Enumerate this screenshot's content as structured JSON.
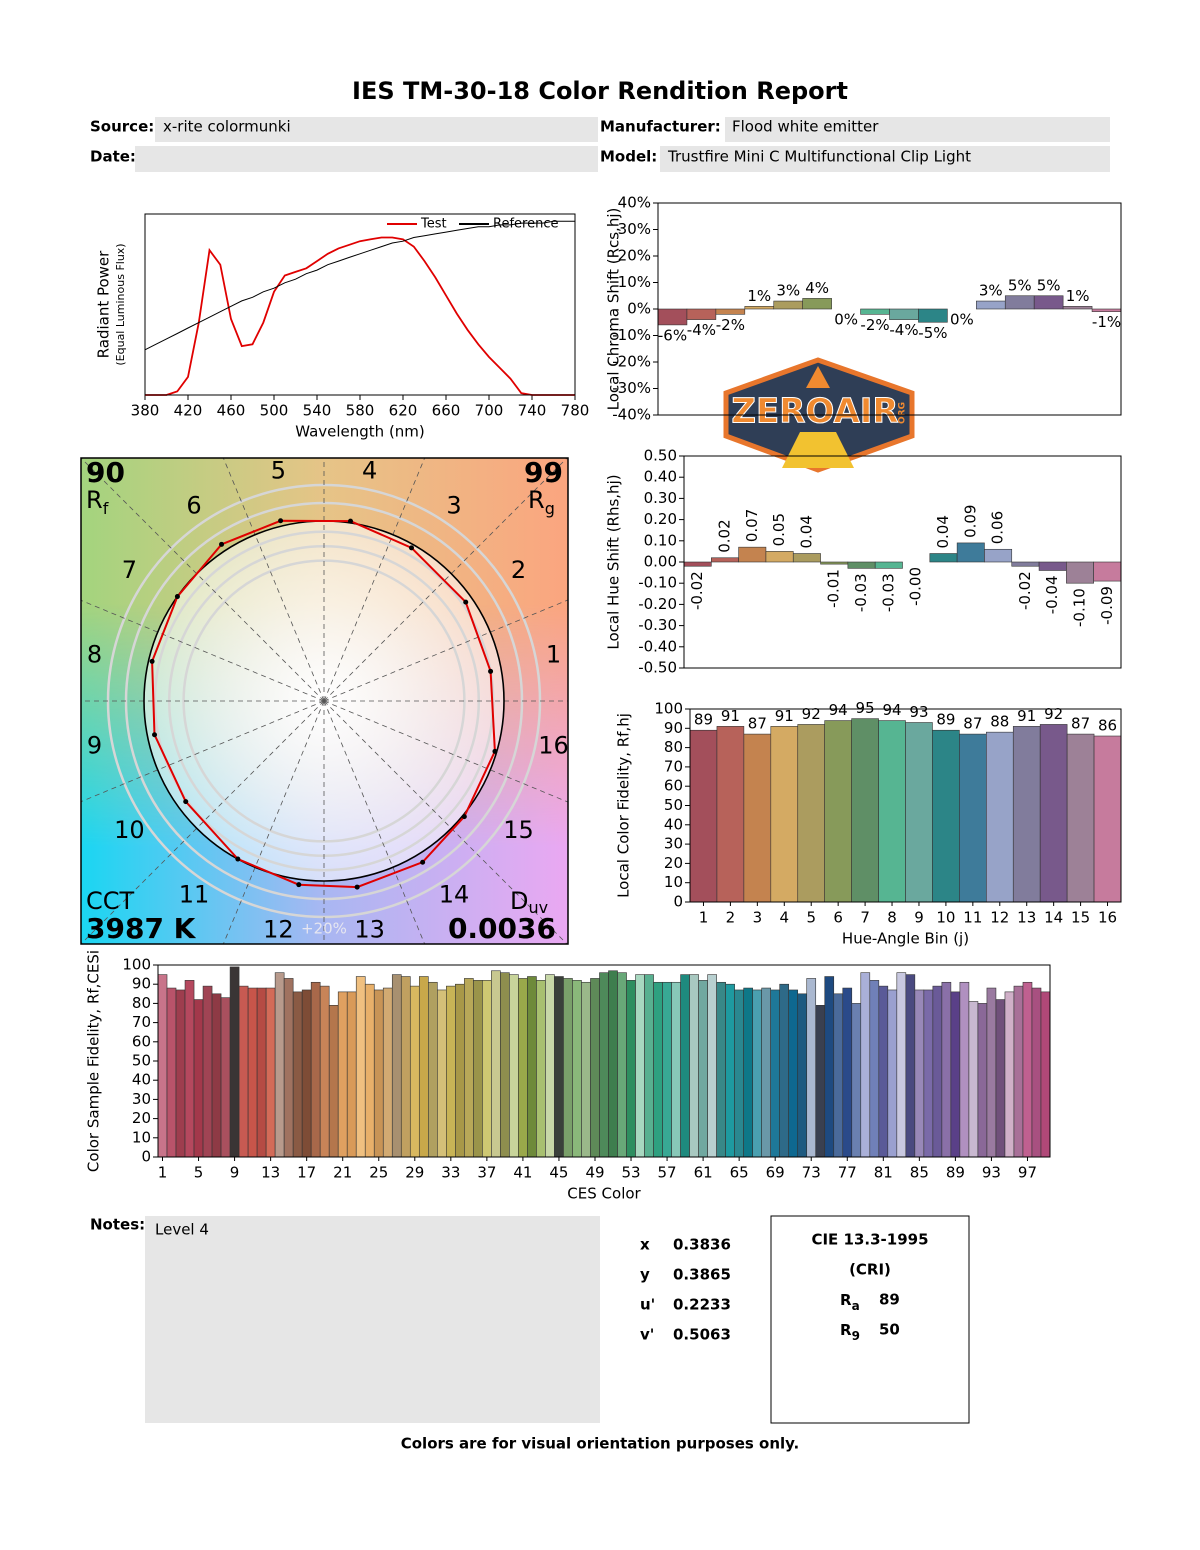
{
  "header": {
    "title": "IES TM-30-18 Color Rendition Report",
    "source_label": "Source:",
    "source": "x-rite colormunki",
    "manufacturer_label": "Manufacturer:",
    "manufacturer": "Flood white emitter",
    "date_label": "Date:",
    "model_label": "Model:",
    "model": "Trustfire Mini C Multifunctional Clip Light"
  },
  "logo": {
    "text": "ZEROAIR",
    "sub": "ORG"
  },
  "vector_graphic": {
    "rf": 90,
    "rf_symbol": "R",
    "rf_sub": "f",
    "rg": 99,
    "rg_symbol": "R",
    "rg_sub": "g",
    "cct_label": "CCT",
    "cct": "3987 K",
    "duv_symbol": "D",
    "duv_sub": "uv",
    "duv": 0.0036,
    "scale_label": "+20%",
    "hue_bins": [
      "1",
      "2",
      "3",
      "4",
      "5",
      "6",
      "7",
      "8",
      "9",
      "10",
      "11",
      "12",
      "13",
      "14",
      "15",
      "16"
    ]
  },
  "chart_data": [
    {
      "type": "line",
      "xlabel": "Wavelength (nm)",
      "ylabel": "Radiant Power",
      "ylabel_sub": "(Equal Luminous Flux)",
      "x": [
        380,
        390,
        400,
        410,
        420,
        430,
        440,
        450,
        460,
        470,
        480,
        490,
        500,
        510,
        520,
        530,
        540,
        550,
        560,
        570,
        580,
        590,
        600,
        610,
        620,
        630,
        640,
        650,
        660,
        670,
        680,
        690,
        700,
        710,
        720,
        730,
        740,
        750,
        760,
        770,
        780
      ],
      "series": [
        {
          "name": "Test",
          "color": "#e00000",
          "values": [
            0,
            0,
            0,
            0.02,
            0.1,
            0.4,
            0.8,
            0.72,
            0.42,
            0.27,
            0.28,
            0.4,
            0.57,
            0.66,
            0.68,
            0.7,
            0.74,
            0.78,
            0.81,
            0.83,
            0.85,
            0.86,
            0.87,
            0.87,
            0.86,
            0.82,
            0.74,
            0.65,
            0.55,
            0.45,
            0.36,
            0.28,
            0.21,
            0.15,
            0.09,
            0.01,
            0,
            0,
            0,
            0,
            0
          ]
        },
        {
          "name": "Reference",
          "color": "#000000",
          "values": [
            0.25,
            0.28,
            0.31,
            0.34,
            0.37,
            0.4,
            0.43,
            0.46,
            0.49,
            0.52,
            0.54,
            0.57,
            0.59,
            0.62,
            0.64,
            0.67,
            0.69,
            0.72,
            0.74,
            0.76,
            0.78,
            0.8,
            0.82,
            0.84,
            0.85,
            0.87,
            0.88,
            0.89,
            0.9,
            0.91,
            0.92,
            0.93,
            0.93,
            0.94,
            0.94,
            0.95,
            0.95,
            0.95,
            0.96,
            0.96,
            0.96
          ]
        }
      ],
      "xlim": [
        380,
        780
      ],
      "xticks": [
        380,
        420,
        460,
        500,
        540,
        580,
        620,
        660,
        700,
        740,
        780
      ],
      "ylim": [
        0,
        1
      ],
      "legend": "upper right"
    },
    {
      "type": "bar",
      "ylabel": "Local Chroma Shift (Rcs,hj)",
      "values": [
        -6,
        -4,
        -2,
        1,
        3,
        4,
        0,
        -2,
        -4,
        -5,
        0,
        3,
        5,
        5,
        1,
        -1
      ],
      "value_labels": [
        "-6%",
        "-4%",
        "-2%",
        "1%",
        "3%",
        "4%",
        "0%",
        "-2%",
        "-4%",
        "-5%",
        "0%",
        "3%",
        "5%",
        "5%",
        "1%",
        "-1%"
      ],
      "colors": [
        "#a34f5b",
        "#b7625a",
        "#c4834f",
        "#d4aa63",
        "#ab9c5f",
        "#879a5a",
        "#5f8f66",
        "#56b592",
        "#6aa89e",
        "#2c8587",
        "#3e7b9a",
        "#97a3c8",
        "#817c9c",
        "#78598b",
        "#9d8197",
        "#c67b9d"
      ],
      "ylim": [
        -40,
        40
      ],
      "yticks": [
        {
          "value": -40,
          "label": "-40%"
        },
        {
          "value": -30,
          "label": "-30%"
        },
        {
          "value": -20,
          "label": "-20%"
        },
        {
          "value": -10,
          "label": "-10%"
        },
        {
          "value": 0,
          "label": "0%"
        },
        {
          "value": 10,
          "label": "10%"
        },
        {
          "value": 20,
          "label": "20%"
        },
        {
          "value": 30,
          "label": "30%"
        },
        {
          "value": 40,
          "label": "40%"
        }
      ]
    },
    {
      "type": "bar",
      "ylabel": "Local Hue Shift (Rhs,hj)",
      "values": [
        -0.02,
        0.02,
        0.07,
        0.05,
        0.04,
        -0.01,
        -0.03,
        -0.03,
        0,
        0.04,
        0.09,
        0.06,
        -0.02,
        -0.04,
        -0.1,
        -0.09
      ],
      "value_labels": [
        "-0.02",
        "0.02",
        "0.07",
        "0.05",
        "0.04",
        "-0.01",
        "-0.03",
        "-0.03",
        "-0.00",
        "0.04",
        "0.09",
        "0.06",
        "-0.02",
        "-0.04",
        "-0.10",
        "-0.09"
      ],
      "colors": [
        "#a34f5b",
        "#b7625a",
        "#c4834f",
        "#d4aa63",
        "#ab9c5f",
        "#879a5a",
        "#5f8f66",
        "#56b592",
        "#6aa89e",
        "#2c8587",
        "#3e7b9a",
        "#97a3c8",
        "#817c9c",
        "#78598b",
        "#9d8197",
        "#c67b9d"
      ],
      "ylim": [
        -0.5,
        0.5
      ],
      "yticks": [
        {
          "value": -0.5,
          "label": "-0.50"
        },
        {
          "value": -0.4,
          "label": "-0.40"
        },
        {
          "value": -0.3,
          "label": "-0.30"
        },
        {
          "value": -0.2,
          "label": "-0.20"
        },
        {
          "value": -0.1,
          "label": "-0.10"
        },
        {
          "value": 0,
          "label": "0.00"
        },
        {
          "value": 0.1,
          "label": "0.10"
        },
        {
          "value": 0.2,
          "label": "0.20"
        },
        {
          "value": 0.3,
          "label": "0.30"
        },
        {
          "value": 0.4,
          "label": "0.40"
        },
        {
          "value": 0.5,
          "label": "0.50"
        }
      ]
    },
    {
      "type": "bar",
      "ylabel": "Local Color Fidelity, Rf,hj",
      "xlabel": "Hue-Angle Bin (j)",
      "categories": [
        "1",
        "2",
        "3",
        "4",
        "5",
        "6",
        "7",
        "8",
        "9",
        "10",
        "11",
        "12",
        "13",
        "14",
        "15",
        "16"
      ],
      "values": [
        89,
        91,
        87,
        91,
        92,
        94,
        95,
        94,
        93,
        89,
        87,
        88,
        91,
        92,
        87,
        86
      ],
      "data_labels": true,
      "colors": [
        "#a34f5b",
        "#b7625a",
        "#c4834f",
        "#d4aa63",
        "#ab9c5f",
        "#879a5a",
        "#5f8f66",
        "#56b592",
        "#6aa89e",
        "#2c8587",
        "#3e7b9a",
        "#97a3c8",
        "#817c9c",
        "#78598b",
        "#9d8197",
        "#c67b9d"
      ],
      "ylim": [
        0,
        100
      ],
      "yticks": [
        0,
        10,
        20,
        30,
        40,
        50,
        60,
        70,
        80,
        90,
        100
      ]
    },
    {
      "type": "bar",
      "ylabel": "Color Sample Fidelity, Rf,CESi",
      "xlabel": "CES Color",
      "categories": [
        "1",
        null,
        null,
        null,
        "5",
        null,
        null,
        null,
        "9",
        null,
        null,
        null,
        "13",
        null,
        null,
        null,
        "17",
        null,
        null,
        null,
        "21",
        null,
        null,
        null,
        "25",
        null,
        null,
        null,
        "29",
        null,
        null,
        null,
        "33",
        null,
        null,
        null,
        "37",
        null,
        null,
        null,
        "41",
        null,
        null,
        null,
        "45",
        null,
        null,
        null,
        "49",
        null,
        null,
        null,
        "53",
        null,
        null,
        null,
        "57",
        null,
        null,
        null,
        "61",
        null,
        null,
        null,
        "65",
        null,
        null,
        null,
        "69",
        null,
        null,
        null,
        "73",
        null,
        null,
        null,
        "77",
        null,
        null,
        null,
        "81",
        null,
        null,
        null,
        "85",
        null,
        null,
        null,
        "89",
        null,
        null,
        null,
        "93",
        null,
        null,
        null,
        "97",
        null,
        null
      ],
      "values": [
        95,
        88,
        87,
        92,
        82,
        89,
        85,
        83,
        99,
        89,
        88,
        88,
        88,
        96,
        93,
        86,
        87,
        91,
        89,
        79,
        86,
        86,
        94,
        90,
        87,
        88,
        95,
        94,
        89,
        94,
        91,
        87,
        89,
        90,
        93,
        92,
        92,
        97,
        96,
        95,
        93,
        94,
        92,
        95,
        94,
        93,
        92,
        91,
        93,
        96,
        97,
        96,
        92,
        95,
        95,
        91,
        91,
        91,
        95,
        95,
        92,
        95,
        91,
        90,
        87,
        88,
        87,
        88,
        87,
        90,
        87,
        85,
        93,
        79,
        94,
        85,
        88,
        80,
        96,
        92,
        89,
        87,
        96,
        95,
        87,
        87,
        89,
        91,
        86,
        91,
        81,
        80,
        88,
        82,
        86,
        89,
        91,
        88,
        86
      ],
      "colors": [
        "#c8748a",
        "#b9536a",
        "#9e3d4e",
        "#b5485e",
        "#a3384b",
        "#a04454",
        "#8e3a45",
        "#a9505e",
        "#3a3535",
        "#c75a52",
        "#c8554a",
        "#b54b44",
        "#d36b58",
        "#b89a8c",
        "#a07260",
        "#8a5a44",
        "#7e4c36",
        "#a8684a",
        "#c88458",
        "#b4764c",
        "#e0a060",
        "#d99a58",
        "#f0c080",
        "#e8b06a",
        "#c89456",
        "#d2aa72",
        "#a89070",
        "#c0a060",
        "#d8b860",
        "#c8a84a",
        "#b0a060",
        "#d4c078",
        "#c8b456",
        "#a89848",
        "#b8a858",
        "#9a944a",
        "#cec872",
        "#c8c890",
        "#8e8e4e",
        "#c8d49a",
        "#9aa84a",
        "#6e8a3a",
        "#a8c070",
        "#c8d8a8",
        "#3a403a",
        "#7aa06a",
        "#8ab87a",
        "#9ab88a",
        "#5e8a58",
        "#4e8a5a",
        "#3e7e4e",
        "#68a878",
        "#2e8e60",
        "#a8d8c0",
        "#58b090",
        "#2ea080",
        "#38a894",
        "#88c8b8",
        "#1e8a7e",
        "#a8c8c0",
        "#70a8a0",
        "#b8d0d0",
        "#388888",
        "#1e9aa0",
        "#2a8890",
        "#0e7888",
        "#4aa0b0",
        "#6a98a8",
        "#1e7898",
        "#2e6a88",
        "#0e6890",
        "#1e5a80",
        "#aab8d0",
        "#3a4050",
        "#1e4a80",
        "#4a6a9a",
        "#2a4a8a",
        "#6a80b0",
        "#aab0d8",
        "#7080b8",
        "#5a5a98",
        "#9aa0d0",
        "#c8c8e0",
        "#4a4a80",
        "#9888b8",
        "#7a6aa8",
        "#6a5a98",
        "#8a70a8",
        "#5a4088",
        "#b090c0",
        "#c8b8d0",
        "#8a6898",
        "#9a7aa0",
        "#70507a",
        "#d0b0c8",
        "#a87098",
        "#c06090",
        "#a85080",
        "#b04878"
      ],
      "ylim": [
        0,
        100
      ],
      "yticks": [
        0,
        10,
        20,
        30,
        40,
        50,
        60,
        70,
        80,
        90,
        100
      ]
    }
  ],
  "notes": {
    "label": "Notes:",
    "text": "Level 4"
  },
  "chromaticity": [
    {
      "label": "x",
      "value": 0.3836
    },
    {
      "label": "y",
      "value": 0.3865
    },
    {
      "label": "u'",
      "value": 0.2233
    },
    {
      "label": "v'",
      "value": 0.5063
    }
  ],
  "cri": {
    "title": "CIE 13.3-1995",
    "subtitle": "(CRI)",
    "ra_symbol": "R",
    "ra_sub": "a",
    "ra": 89,
    "r9_symbol": "R",
    "r9_sub": "9",
    "r9": 50
  },
  "footer": "Colors are for visual orientation purposes only."
}
